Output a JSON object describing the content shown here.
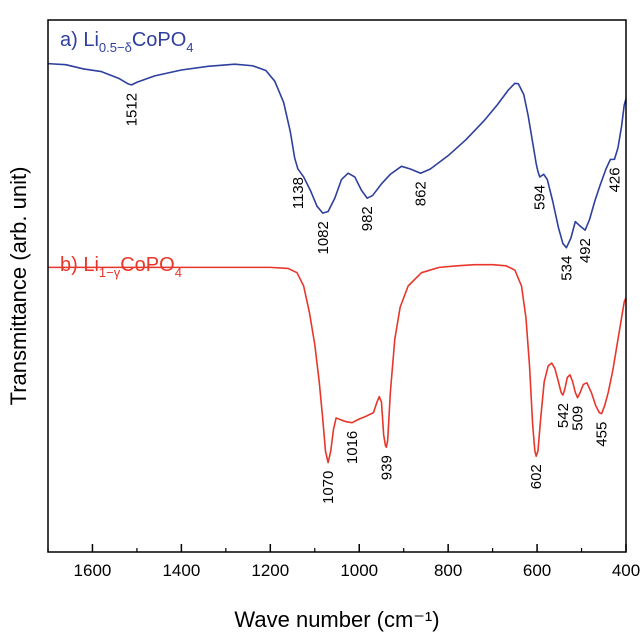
{
  "chart_data": {
    "type": "line",
    "xlabel": "Wave number (cm⁻¹)",
    "ylabel": "Transmittance (arb. unit)",
    "xlim": [
      1700,
      400
    ],
    "x_reversed": true,
    "xticks": [
      "1600",
      "1400",
      "1200",
      "1000",
      "800",
      "600",
      "400"
    ],
    "ylim": [
      0,
      1
    ],
    "yticks": [],
    "grid": false,
    "series": [
      {
        "label_prefix": "a) Li",
        "label_sub": "0.5−δ",
        "label_suffix": "CoPO",
        "label_sub2": "4",
        "color": "#2e3f9e",
        "peaks": [
          "1512",
          "1138",
          "1082",
          "982",
          "862",
          "594",
          "534",
          "492",
          "426"
        ],
        "points": [
          [
            1700,
            0.918
          ],
          [
            1660,
            0.916
          ],
          [
            1620,
            0.908
          ],
          [
            1580,
            0.903
          ],
          [
            1540,
            0.89
          ],
          [
            1520,
            0.88
          ],
          [
            1512,
            0.878
          ],
          [
            1500,
            0.883
          ],
          [
            1460,
            0.895
          ],
          [
            1400,
            0.906
          ],
          [
            1340,
            0.913
          ],
          [
            1280,
            0.917
          ],
          [
            1240,
            0.914
          ],
          [
            1210,
            0.905
          ],
          [
            1190,
            0.885
          ],
          [
            1170,
            0.845
          ],
          [
            1155,
            0.79
          ],
          [
            1145,
            0.74
          ],
          [
            1138,
            0.72
          ],
          [
            1125,
            0.705
          ],
          [
            1110,
            0.68
          ],
          [
            1095,
            0.65
          ],
          [
            1082,
            0.637
          ],
          [
            1070,
            0.64
          ],
          [
            1055,
            0.665
          ],
          [
            1040,
            0.7
          ],
          [
            1025,
            0.712
          ],
          [
            1010,
            0.705
          ],
          [
            995,
            0.68
          ],
          [
            982,
            0.665
          ],
          [
            970,
            0.67
          ],
          [
            950,
            0.692
          ],
          [
            930,
            0.71
          ],
          [
            905,
            0.725
          ],
          [
            885,
            0.72
          ],
          [
            862,
            0.712
          ],
          [
            840,
            0.72
          ],
          [
            800,
            0.745
          ],
          [
            760,
            0.775
          ],
          [
            720,
            0.81
          ],
          [
            690,
            0.84
          ],
          [
            665,
            0.868
          ],
          [
            650,
            0.881
          ],
          [
            642,
            0.88
          ],
          [
            630,
            0.86
          ],
          [
            620,
            0.82
          ],
          [
            610,
            0.77
          ],
          [
            602,
            0.73
          ],
          [
            598,
            0.715
          ],
          [
            594,
            0.705
          ],
          [
            585,
            0.71
          ],
          [
            577,
            0.7
          ],
          [
            565,
            0.66
          ],
          [
            552,
            0.61
          ],
          [
            542,
            0.58
          ],
          [
            534,
            0.572
          ],
          [
            524,
            0.59
          ],
          [
            514,
            0.621
          ],
          [
            505,
            0.614
          ],
          [
            492,
            0.605
          ],
          [
            482,
            0.625
          ],
          [
            470,
            0.66
          ],
          [
            458,
            0.69
          ],
          [
            445,
            0.72
          ],
          [
            435,
            0.738
          ],
          [
            426,
            0.738
          ],
          [
            418,
            0.76
          ],
          [
            410,
            0.8
          ],
          [
            404,
            0.84
          ],
          [
            400,
            0.852
          ]
        ]
      },
      {
        "label_prefix": "b) Li",
        "label_sub": "1−γ",
        "label_suffix": "CoPO",
        "label_sub2": "4",
        "color": "#e8362a",
        "peaks": [
          "1070",
          "1016",
          "939",
          "602",
          "542",
          "509",
          "455"
        ],
        "points": [
          [
            1700,
            0.535
          ],
          [
            1600,
            0.535
          ],
          [
            1500,
            0.535
          ],
          [
            1400,
            0.535
          ],
          [
            1300,
            0.535
          ],
          [
            1200,
            0.535
          ],
          [
            1160,
            0.533
          ],
          [
            1140,
            0.525
          ],
          [
            1125,
            0.5
          ],
          [
            1112,
            0.45
          ],
          [
            1100,
            0.39
          ],
          [
            1090,
            0.32
          ],
          [
            1082,
            0.25
          ],
          [
            1076,
            0.19
          ],
          [
            1070,
            0.168
          ],
          [
            1064,
            0.19
          ],
          [
            1058,
            0.23
          ],
          [
            1052,
            0.252
          ],
          [
            1040,
            0.248
          ],
          [
            1030,
            0.245
          ],
          [
            1016,
            0.243
          ],
          [
            1000,
            0.25
          ],
          [
            985,
            0.255
          ],
          [
            968,
            0.262
          ],
          [
            960,
            0.282
          ],
          [
            955,
            0.292
          ],
          [
            950,
            0.282
          ],
          [
            945,
            0.22
          ],
          [
            941,
            0.2
          ],
          [
            939,
            0.197
          ],
          [
            936,
            0.21
          ],
          [
            930,
            0.3
          ],
          [
            920,
            0.4
          ],
          [
            908,
            0.46
          ],
          [
            890,
            0.5
          ],
          [
            860,
            0.525
          ],
          [
            820,
            0.535
          ],
          [
            780,
            0.538
          ],
          [
            740,
            0.54
          ],
          [
            700,
            0.54
          ],
          [
            670,
            0.538
          ],
          [
            650,
            0.53
          ],
          [
            635,
            0.5
          ],
          [
            625,
            0.44
          ],
          [
            617,
            0.35
          ],
          [
            610,
            0.24
          ],
          [
            605,
            0.19
          ],
          [
            602,
            0.18
          ],
          [
            598,
            0.19
          ],
          [
            592,
            0.25
          ],
          [
            584,
            0.32
          ],
          [
            575,
            0.35
          ],
          [
            567,
            0.355
          ],
          [
            560,
            0.345
          ],
          [
            552,
            0.32
          ],
          [
            546,
            0.3
          ],
          [
            542,
            0.295
          ],
          [
            538,
            0.305
          ],
          [
            532,
            0.328
          ],
          [
            526,
            0.333
          ],
          [
            520,
            0.32
          ],
          [
            514,
            0.3
          ],
          [
            509,
            0.29
          ],
          [
            503,
            0.3
          ],
          [
            496,
            0.315
          ],
          [
            488,
            0.318
          ],
          [
            478,
            0.3
          ],
          [
            468,
            0.275
          ],
          [
            460,
            0.262
          ],
          [
            455,
            0.26
          ],
          [
            448,
            0.275
          ],
          [
            440,
            0.3
          ],
          [
            430,
            0.34
          ],
          [
            420,
            0.39
          ],
          [
            410,
            0.44
          ],
          [
            404,
            0.47
          ],
          [
            400,
            0.478
          ]
        ]
      }
    ]
  }
}
